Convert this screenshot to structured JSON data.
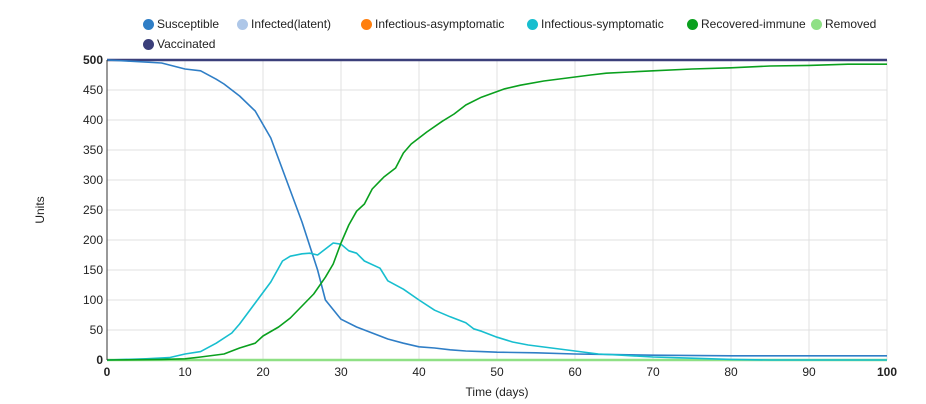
{
  "chart_data": {
    "type": "line",
    "title": "",
    "xlabel": "Time (days)",
    "ylabel": "Units",
    "xlim": [
      0,
      100
    ],
    "ylim": [
      0,
      500
    ],
    "grid": true,
    "legend_position": "top",
    "x_ticks": [
      "0",
      "10",
      "20",
      "30",
      "40",
      "50",
      "60",
      "70",
      "80",
      "90",
      "100"
    ],
    "y_ticks": [
      "0",
      "50",
      "100",
      "150",
      "200",
      "250",
      "300",
      "350",
      "400",
      "450",
      "500"
    ],
    "series": [
      {
        "name": "Susceptible",
        "color": "#2f7ec6",
        "points": [
          [
            0,
            500
          ],
          [
            3,
            498
          ],
          [
            7,
            495
          ],
          [
            10,
            485
          ],
          [
            12,
            482
          ],
          [
            14,
            468
          ],
          [
            15,
            460
          ],
          [
            17,
            440
          ],
          [
            19,
            415
          ],
          [
            21,
            370
          ],
          [
            23,
            300
          ],
          [
            25,
            230
          ],
          [
            27,
            150
          ],
          [
            28,
            100
          ],
          [
            30,
            68
          ],
          [
            32,
            55
          ],
          [
            34,
            45
          ],
          [
            36,
            35
          ],
          [
            38,
            28
          ],
          [
            40,
            22
          ],
          [
            42,
            20
          ],
          [
            44,
            17
          ],
          [
            46,
            15
          ],
          [
            48,
            14
          ],
          [
            50,
            13
          ],
          [
            55,
            12
          ],
          [
            60,
            10
          ],
          [
            65,
            9
          ],
          [
            70,
            8
          ],
          [
            80,
            7
          ],
          [
            100,
            7
          ]
        ]
      },
      {
        "name": "Infected(latent)",
        "color": "#aec7e8",
        "points": [
          [
            0,
            0
          ],
          [
            100,
            0
          ]
        ]
      },
      {
        "name": "Infectious-asymptomatic",
        "color": "#ff7f0e",
        "points": [
          [
            0,
            0
          ],
          [
            100,
            0
          ]
        ]
      },
      {
        "name": "Infectious-symptomatic",
        "color": "#17becf",
        "points": [
          [
            0,
            0
          ],
          [
            5,
            2
          ],
          [
            8,
            4
          ],
          [
            10,
            10
          ],
          [
            12,
            14
          ],
          [
            14,
            28
          ],
          [
            16,
            45
          ],
          [
            17,
            60
          ],
          [
            19,
            95
          ],
          [
            21,
            130
          ],
          [
            22.5,
            165
          ],
          [
            23.5,
            173
          ],
          [
            25,
            177
          ],
          [
            26,
            178
          ],
          [
            27,
            175
          ],
          [
            28,
            185
          ],
          [
            29,
            195
          ],
          [
            30,
            193
          ],
          [
            31,
            182
          ],
          [
            32,
            178
          ],
          [
            33,
            165
          ],
          [
            35,
            153
          ],
          [
            36,
            132
          ],
          [
            38,
            118
          ],
          [
            40,
            100
          ],
          [
            42,
            83
          ],
          [
            44,
            72
          ],
          [
            46,
            62
          ],
          [
            47,
            52
          ],
          [
            48,
            48
          ],
          [
            50,
            38
          ],
          [
            52,
            30
          ],
          [
            54,
            25
          ],
          [
            57,
            20
          ],
          [
            60,
            15
          ],
          [
            63,
            10
          ],
          [
            66,
            8
          ],
          [
            70,
            5
          ],
          [
            75,
            3
          ],
          [
            80,
            1
          ],
          [
            85,
            0
          ],
          [
            100,
            0
          ]
        ]
      },
      {
        "name": "Recovered-immune",
        "color": "#0aa01e",
        "points": [
          [
            0,
            0
          ],
          [
            7,
            1
          ],
          [
            10,
            2
          ],
          [
            12,
            5
          ],
          [
            15,
            10
          ],
          [
            17,
            20
          ],
          [
            19,
            28
          ],
          [
            20,
            40
          ],
          [
            22,
            55
          ],
          [
            23.5,
            70
          ],
          [
            25,
            90
          ],
          [
            26.5,
            110
          ],
          [
            28,
            138
          ],
          [
            29,
            160
          ],
          [
            30,
            195
          ],
          [
            31,
            225
          ],
          [
            32,
            248
          ],
          [
            33,
            260
          ],
          [
            34,
            285
          ],
          [
            35.5,
            305
          ],
          [
            37,
            320
          ],
          [
            38,
            345
          ],
          [
            39,
            360
          ],
          [
            41,
            380
          ],
          [
            43,
            398
          ],
          [
            44.5,
            410
          ],
          [
            46,
            425
          ],
          [
            48,
            438
          ],
          [
            49.5,
            445
          ],
          [
            51,
            452
          ],
          [
            53,
            458
          ],
          [
            56,
            465
          ],
          [
            59,
            470
          ],
          [
            62,
            475
          ],
          [
            64,
            478
          ],
          [
            67,
            480
          ],
          [
            70,
            482
          ],
          [
            75,
            485
          ],
          [
            80,
            487
          ],
          [
            85,
            490
          ],
          [
            90,
            491
          ],
          [
            95,
            493
          ],
          [
            100,
            493
          ]
        ]
      },
      {
        "name": "Removed",
        "color": "#8fe085",
        "points": [
          [
            0,
            0
          ],
          [
            100,
            0
          ]
        ]
      },
      {
        "name": "Vaccinated",
        "color": "#3b3f7a",
        "points": [
          [
            0,
            500
          ],
          [
            100,
            500
          ]
        ]
      }
    ]
  }
}
